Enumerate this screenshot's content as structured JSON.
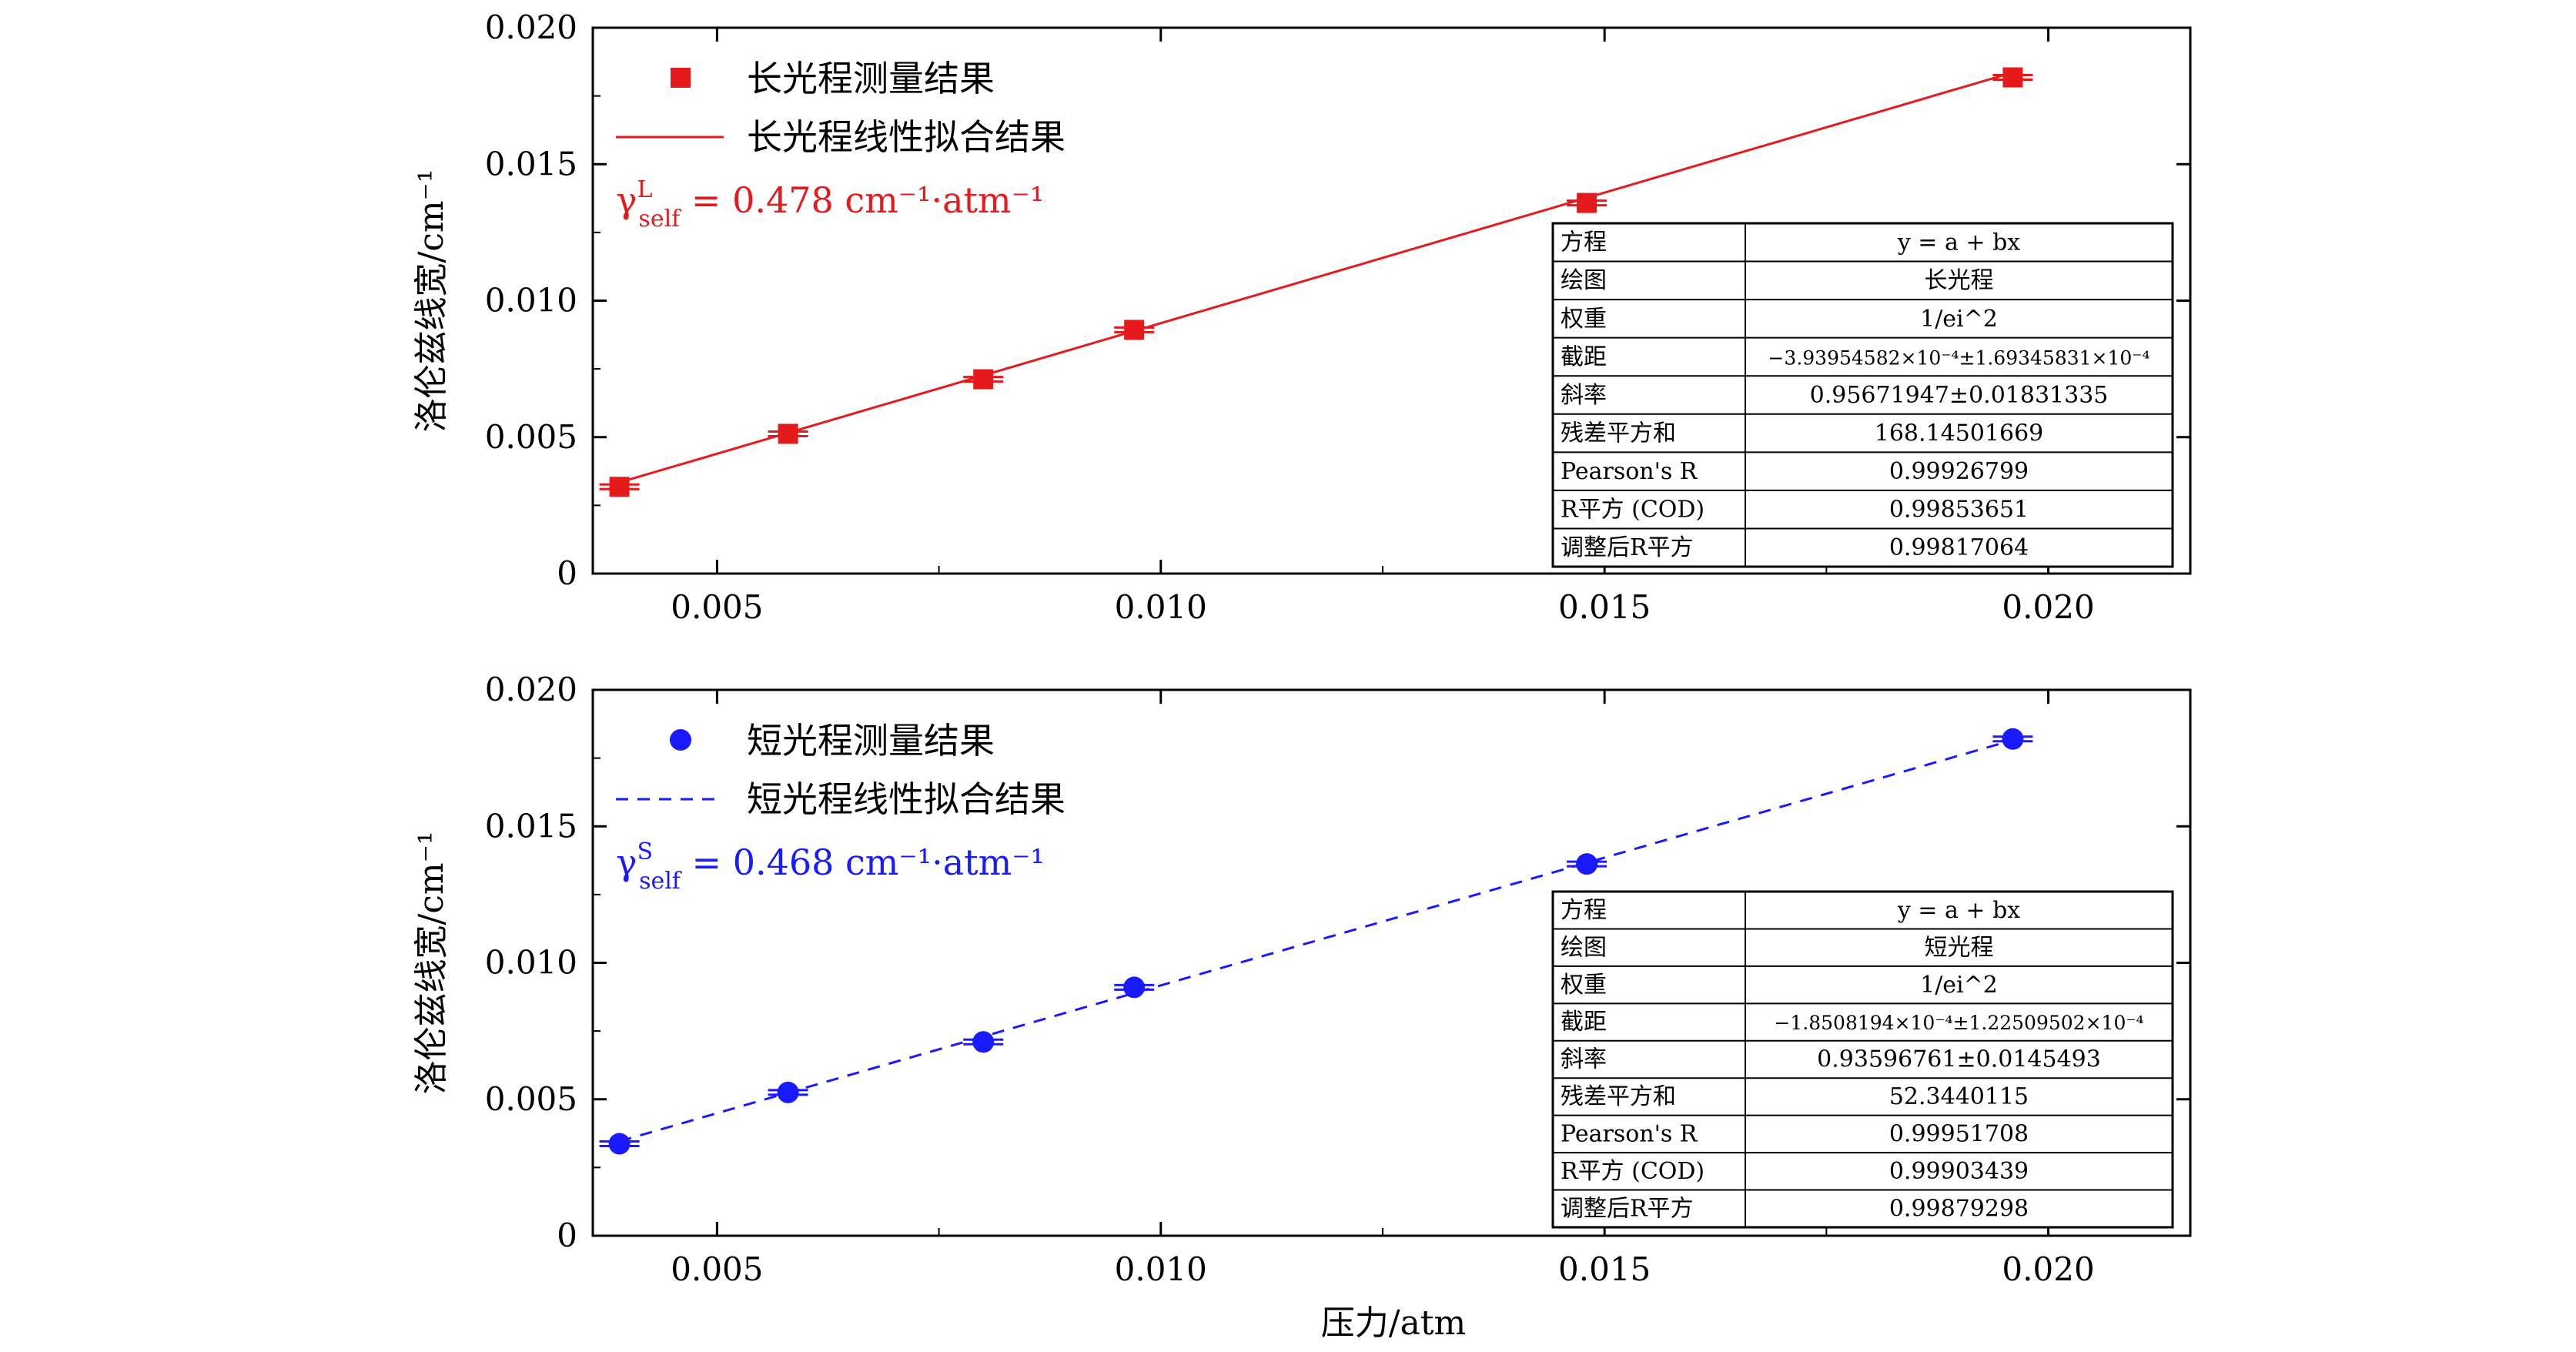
{
  "xlabel": "压力/atm",
  "chart_data": [
    {
      "type": "scatter",
      "xlim": [
        0.0036,
        0.0216
      ],
      "ylim": [
        0,
        0.02
      ],
      "xticks": [
        "0.005",
        "0.010",
        "0.015",
        "0.020"
      ],
      "xtick_values": [
        0.005,
        0.01,
        0.015,
        0.02
      ],
      "yticks": [
        "0",
        "0.005",
        "0.010",
        "0.015",
        "0.020"
      ],
      "ytick_values": [
        0,
        0.005,
        0.01,
        0.015,
        0.02
      ],
      "ylabel": "洛伦兹线宽/cm⁻¹",
      "color": "#e41a1c",
      "marker": "square",
      "line_style": "solid",
      "series": [
        {
          "name": "长光程测量结果",
          "kind": "points",
          "x": [
            0.0039,
            0.0058,
            0.008,
            0.0097,
            0.0148,
            0.0196
          ],
          "y": [
            0.00318,
            0.00512,
            0.00712,
            0.00893,
            0.01358,
            0.01818
          ]
        },
        {
          "name": "长光程线性拟合结果",
          "kind": "fit",
          "x": [
            0.0039,
            0.0196
          ],
          "y": [
            0.00334,
            0.01836
          ]
        }
      ],
      "gamma": {
        "symbol": "γ",
        "sup": "L",
        "sub": "self",
        "value": "= 0.478 cm⁻¹·atm⁻¹"
      },
      "table": [
        [
          "方程",
          "y = a + bx"
        ],
        [
          "绘图",
          "长光程"
        ],
        [
          "权重",
          "1/ei^2"
        ],
        [
          "截距",
          "−3.93954582×10⁻⁴±1.69345831×10⁻⁴"
        ],
        [
          "斜率",
          "0.95671947±0.01831335"
        ],
        [
          "残差平方和",
          "168.14501669"
        ],
        [
          "Pearson's R",
          "0.99926799"
        ],
        [
          "R平方 (COD)",
          "0.99853651"
        ],
        [
          "调整后R平方",
          "0.99817064"
        ]
      ]
    },
    {
      "type": "scatter",
      "xlim": [
        0.0036,
        0.0216
      ],
      "ylim": [
        0,
        0.02
      ],
      "xticks": [
        "0.005",
        "0.010",
        "0.015",
        "0.020"
      ],
      "xtick_values": [
        0.005,
        0.01,
        0.015,
        0.02
      ],
      "yticks": [
        "0",
        "0.005",
        "0.010",
        "0.015",
        "0.020"
      ],
      "ytick_values": [
        0,
        0.005,
        0.01,
        0.015,
        0.02
      ],
      "ylabel": "洛伦兹线宽/cm⁻¹",
      "color": "#1a1aff",
      "marker": "circle",
      "line_style": "dashed",
      "series": [
        {
          "name": "短光程测量结果",
          "kind": "points",
          "x": [
            0.0039,
            0.0058,
            0.008,
            0.0097,
            0.0148,
            0.0196
          ],
          "y": [
            0.00337,
            0.00525,
            0.0071,
            0.0091,
            0.01362,
            0.0182
          ]
        },
        {
          "name": "短光程线性拟合结果",
          "kind": "fit",
          "x": [
            0.0039,
            0.0196
          ],
          "y": [
            0.00346,
            0.01816
          ]
        }
      ],
      "gamma": {
        "symbol": "γ",
        "sup": "S",
        "sub": "self",
        "value": "= 0.468 cm⁻¹·atm⁻¹"
      },
      "table": [
        [
          "方程",
          "y = a + bx"
        ],
        [
          "绘图",
          "短光程"
        ],
        [
          "权重",
          "1/ei^2"
        ],
        [
          "截距",
          "−1.8508194×10⁻⁴±1.22509502×10⁻⁴"
        ],
        [
          "斜率",
          "0.93596761±0.0145493"
        ],
        [
          "残差平方和",
          "52.3440115"
        ],
        [
          "Pearson's R",
          "0.99951708"
        ],
        [
          "R平方 (COD)",
          "0.99903439"
        ],
        [
          "调整后R平方",
          "0.99879298"
        ]
      ]
    }
  ]
}
